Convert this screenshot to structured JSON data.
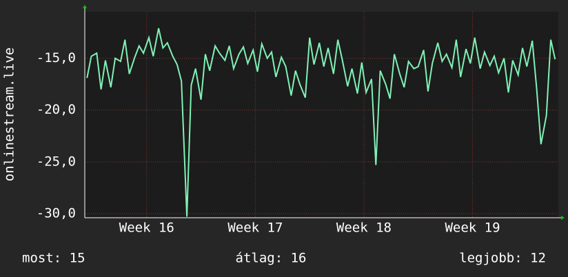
{
  "chart_data": {
    "type": "line",
    "y_label": "onlinestream.live",
    "x": [
      15.95,
      15.99,
      16.04,
      16.08,
      16.12,
      16.17,
      16.21,
      16.26,
      16.3,
      16.34,
      16.39,
      16.43,
      16.47,
      16.52,
      16.56,
      16.61,
      16.65,
      16.69,
      16.74,
      16.78,
      16.82,
      16.87,
      16.91,
      16.95,
      17.0,
      17.04,
      17.08,
      17.13,
      17.17,
      17.22,
      17.26,
      17.3,
      17.35,
      17.39,
      17.43,
      17.48,
      17.52,
      17.56,
      17.61,
      17.65,
      17.69,
      17.74,
      17.78,
      17.83,
      17.87,
      17.91,
      17.96,
      18.0,
      18.04,
      18.09,
      18.13,
      18.17,
      18.22,
      18.26,
      18.3,
      18.35,
      18.39,
      18.44,
      18.48,
      18.52,
      18.57,
      18.61,
      18.65,
      18.7,
      18.74,
      18.78,
      18.83,
      18.87,
      18.91,
      18.96,
      19.0,
      19.05,
      19.09,
      19.13,
      19.18,
      19.22,
      19.26,
      19.31,
      19.35,
      19.39,
      19.44,
      19.48,
      19.52,
      19.57,
      19.61,
      19.66,
      19.7,
      19.74,
      19.79,
      19.83,
      19.87,
      19.92,
      19.96,
      20.0,
      20.05,
      20.09,
      20.13,
      20.18,
      20.22,
      20.26
    ],
    "series": [
      {
        "color": "#80f2b6",
        "values": [
          -16.9,
          -14.8,
          -14.5,
          -18.0,
          -15.2,
          -17.8,
          -15.0,
          -15.3,
          -13.2,
          -16.5,
          -14.9,
          -13.8,
          -14.5,
          -13.0,
          -14.8,
          -12.1,
          -14.0,
          -13.5,
          -14.8,
          -15.6,
          -17.2,
          -30.3,
          -17.6,
          -16.0,
          -19.0,
          -14.6,
          -16.2,
          -13.8,
          -14.5,
          -15.2,
          -13.8,
          -16.0,
          -14.6,
          -13.9,
          -15.5,
          -14.2,
          -16.3,
          -13.6,
          -15.0,
          -14.4,
          -16.8,
          -14.9,
          -15.8,
          -18.6,
          -16.2,
          -17.5,
          -18.8,
          -13.0,
          -15.6,
          -13.5,
          -15.8,
          -14.0,
          -16.5,
          -13.2,
          -15.1,
          -17.7,
          -16.0,
          -18.4,
          -15.4,
          -18.3,
          -17.0,
          -25.3,
          -16.2,
          -17.5,
          -18.9,
          -14.6,
          -16.5,
          -17.8,
          -15.3,
          -16.0,
          -15.8,
          -14.2,
          -18.2,
          -15.5,
          -13.5,
          -15.3,
          -14.6,
          -15.9,
          -13.2,
          -16.8,
          -14.1,
          -15.5,
          -13.0,
          -16.0,
          -14.4,
          -15.7,
          -14.8,
          -16.4,
          -15.0,
          -18.3,
          -15.2,
          -16.6,
          -14.0,
          -15.8,
          -13.3,
          -17.9,
          -23.3,
          -20.5,
          -13.2,
          -15.1
        ]
      }
    ],
    "xlim": [
      15.93,
      20.29
    ],
    "xticks": [
      {
        "value": 16.5,
        "label": "Week 16"
      },
      {
        "value": 17.5,
        "label": "Week 17"
      },
      {
        "value": 18.5,
        "label": "Week 18"
      },
      {
        "value": 19.5,
        "label": "Week 19"
      }
    ],
    "ylim": [
      -30.4,
      -10.5
    ],
    "yticks": [
      {
        "value": -15,
        "label": "-15,0"
      },
      {
        "value": -20,
        "label": "-20,0"
      },
      {
        "value": -25,
        "label": "-25,0"
      },
      {
        "value": -30,
        "label": "-30,0"
      }
    ],
    "grid": true,
    "footer": [
      "most: 15",
      "átlag: 16",
      "legjobb: 12"
    ]
  }
}
